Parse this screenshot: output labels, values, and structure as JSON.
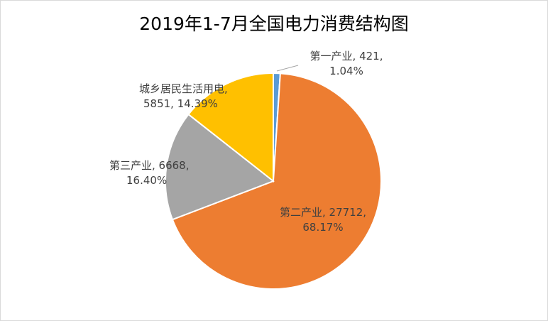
{
  "chart_data": {
    "type": "pie",
    "title": "2019年1-7月全国电力消费结构图",
    "start_angle": "top",
    "direction": "clockwise",
    "slices": [
      {
        "name": "第一产业",
        "value": 421,
        "percent": "1.04%",
        "color": "#5b9bd5",
        "line1": "第一产业, 421,",
        "line2": "1.04%"
      },
      {
        "name": "第二产业",
        "value": 27712,
        "percent": "68.17%",
        "color": "#ed7d31",
        "line1": "第二产业, 27712,",
        "line2": "68.17%"
      },
      {
        "name": "第三产业",
        "value": 6668,
        "percent": "16.40%",
        "color": "#a5a5a5",
        "line1": "第三产业, 6668,",
        "line2": "16.40%"
      },
      {
        "name": "城乡居民生活用电",
        "value": 5851,
        "percent": "14.39%",
        "color": "#ffc000",
        "line1": "城乡居民生活用电,",
        "line2": "5851, 14.39%"
      }
    ]
  }
}
